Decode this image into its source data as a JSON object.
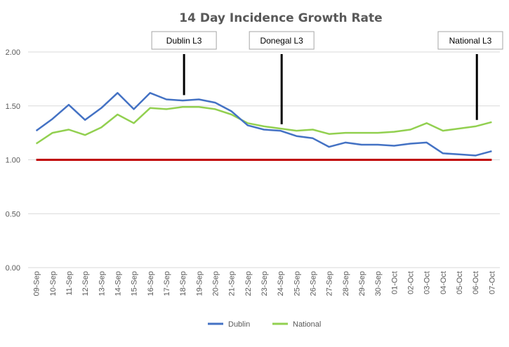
{
  "chart_data": {
    "type": "line",
    "title": "14 Day Incidence Growth Rate",
    "xlabel": "",
    "ylabel": "",
    "ylim": [
      0,
      2
    ],
    "yticks": [
      "0.00",
      "0.50",
      "1.00",
      "1.50",
      "2.00"
    ],
    "grid": true,
    "legend_position": "bottom",
    "categories": [
      "09-Sep",
      "10-Sep",
      "11-Sep",
      "12-Sep",
      "13-Sep",
      "14-Sep",
      "15-Sep",
      "16-Sep",
      "17-Sep",
      "18-Sep",
      "19-Sep",
      "20-Sep",
      "21-Sep",
      "22-Sep",
      "23-Sep",
      "24-Sep",
      "25-Sep",
      "26-Sep",
      "27-Sep",
      "28-Sep",
      "29-Sep",
      "30-Sep",
      "01-Oct",
      "02-Oct",
      "03-Oct",
      "04-Oct",
      "05-Oct",
      "06-Oct",
      "07-Oct"
    ],
    "series": [
      {
        "name": "Dublin",
        "color": "#4472c4",
        "values": [
          1.27,
          1.38,
          1.51,
          1.37,
          1.48,
          1.62,
          1.47,
          1.62,
          1.56,
          1.55,
          1.56,
          1.53,
          1.45,
          1.32,
          1.28,
          1.27,
          1.22,
          1.2,
          1.12,
          1.16,
          1.14,
          1.14,
          1.13,
          1.15,
          1.16,
          1.06,
          1.05,
          1.04,
          1.08
        ]
      },
      {
        "name": "National",
        "color": "#92d050",
        "values": [
          1.15,
          1.25,
          1.28,
          1.23,
          1.3,
          1.42,
          1.34,
          1.48,
          1.47,
          1.49,
          1.49,
          1.47,
          1.42,
          1.34,
          1.31,
          1.29,
          1.27,
          1.28,
          1.24,
          1.25,
          1.25,
          1.25,
          1.26,
          1.28,
          1.34,
          1.27,
          1.29,
          1.31,
          1.35
        ]
      }
    ],
    "reference_line": {
      "value": 1.0,
      "color": "#c00000"
    },
    "annotations": [
      {
        "label": "Dublin L3",
        "category": "18-Sep",
        "y": 1.6
      },
      {
        "label": "Donegal L3",
        "category": "24-Sep",
        "y": 1.33
      },
      {
        "label": "National L3",
        "category": "06-Oct",
        "y": 1.37
      }
    ]
  }
}
